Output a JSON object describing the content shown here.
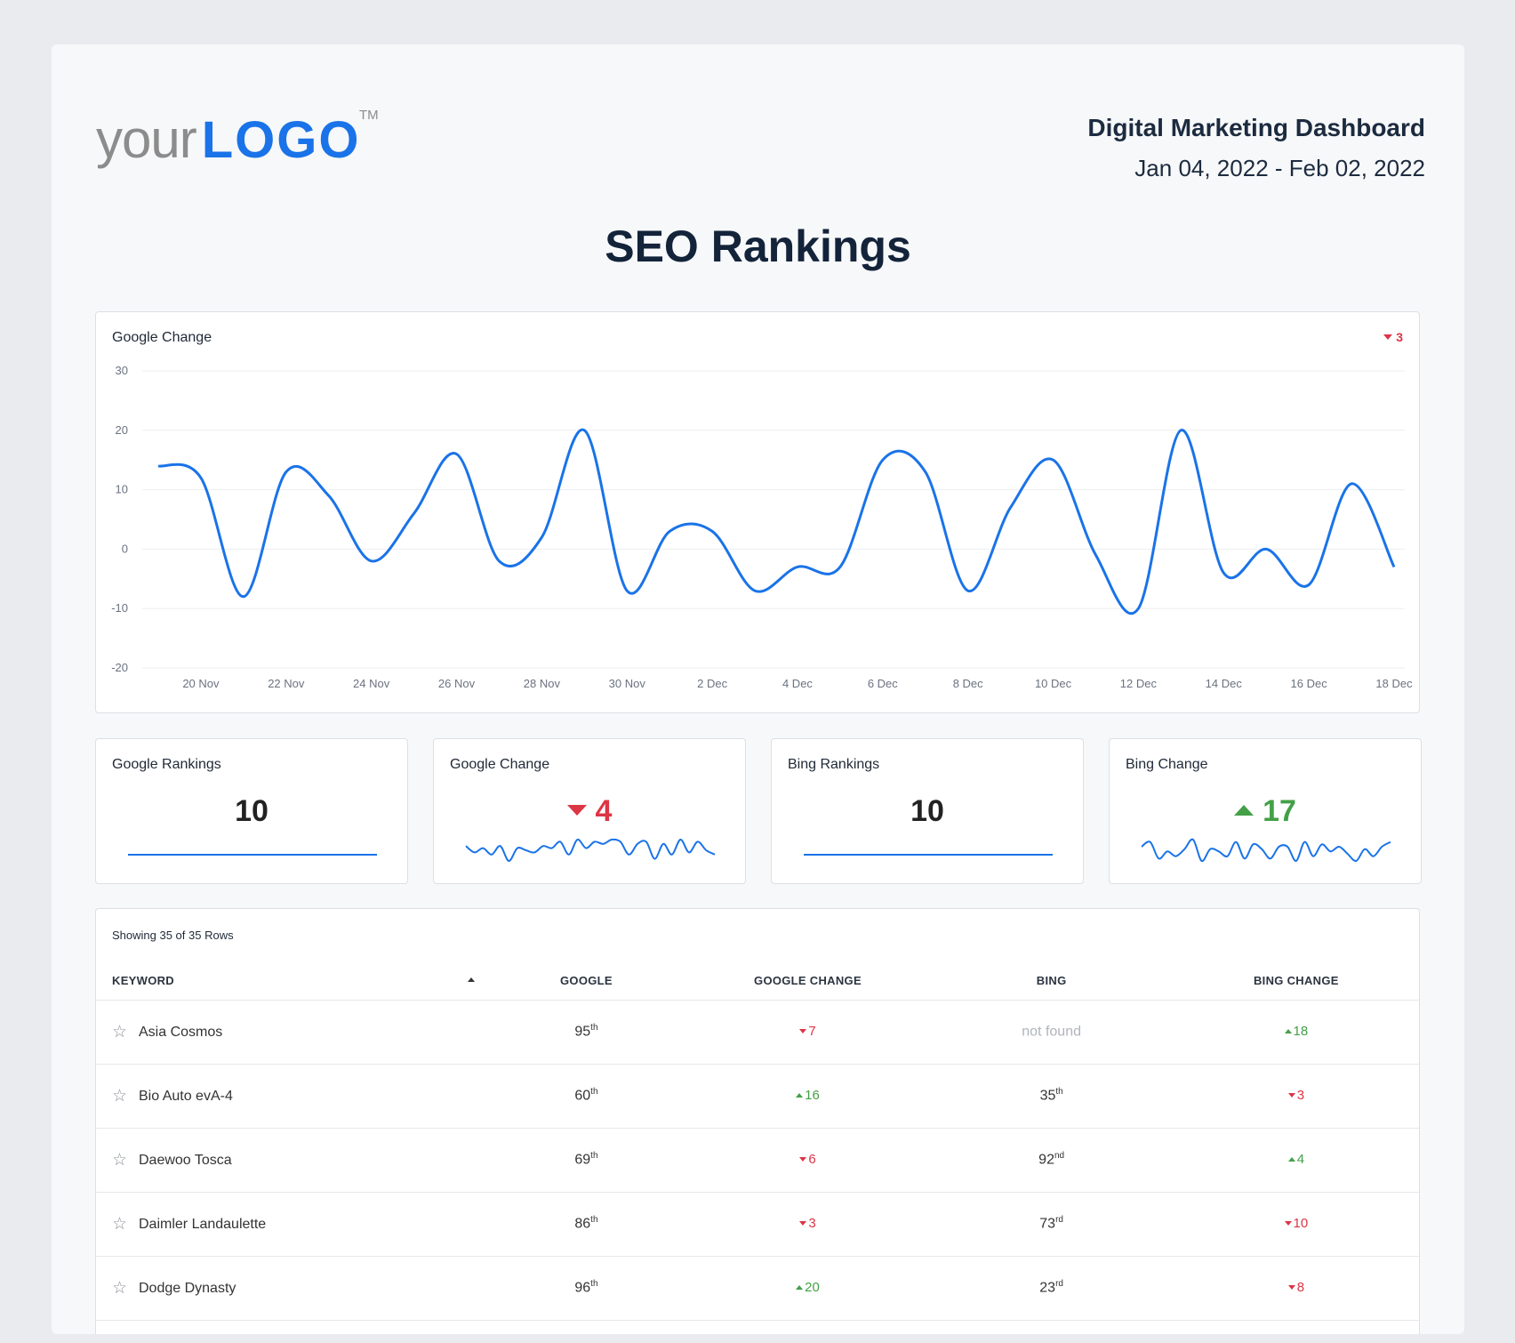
{
  "header": {
    "logo_your": "your",
    "logo_brand": "LOGO",
    "logo_tm": "TM",
    "report_title": "Digital Marketing Dashboard",
    "date_range": "Jan 04, 2022 - Feb 02, 2022"
  },
  "page_title": "SEO Rankings",
  "main_chart": {
    "title": "Google Change",
    "delta_value": "3",
    "delta_direction": "down"
  },
  "chart_data": {
    "type": "line",
    "title": "Google Change",
    "x": [
      "19 Nov",
      "20 Nov",
      "21 Nov",
      "22 Nov",
      "23 Nov",
      "24 Nov",
      "25 Nov",
      "26 Nov",
      "27 Nov",
      "28 Nov",
      "29 Nov",
      "30 Nov",
      "1 Dec",
      "2 Dec",
      "3 Dec",
      "4 Dec",
      "5 Dec",
      "6 Dec",
      "7 Dec",
      "8 Dec",
      "9 Dec",
      "10 Dec",
      "11 Dec",
      "12 Dec",
      "13 Dec",
      "14 Dec",
      "15 Dec",
      "16 Dec",
      "17 Dec",
      "18 Dec"
    ],
    "tick_labels": [
      "20 Nov",
      "22 Nov",
      "24 Nov",
      "26 Nov",
      "28 Nov",
      "30 Nov",
      "2 Dec",
      "4 Dec",
      "6 Dec",
      "8 Dec",
      "10 Dec",
      "12 Dec",
      "14 Dec",
      "16 Dec",
      "18 Dec"
    ],
    "series": [
      {
        "values": [
          14,
          12,
          -8,
          13,
          9,
          -2,
          6,
          16,
          -2,
          2,
          20,
          -7,
          3,
          3,
          -7,
          -3,
          -3,
          15,
          13,
          -7,
          7,
          15,
          -1,
          -10,
          20,
          -4,
          0,
          -6,
          11,
          -3
        ]
      }
    ],
    "y_ticks": [
      30,
      20,
      10,
      0,
      -10,
      -20
    ],
    "ylim": [
      -20,
      30
    ],
    "grid": true,
    "line_color": "#1a73e8"
  },
  "kpis": [
    {
      "title": "Google Rankings",
      "value": "10",
      "direction": "none",
      "spark": [
        10,
        10,
        10,
        10,
        10,
        10,
        10,
        10,
        10,
        10,
        10,
        10,
        10,
        10,
        10,
        10,
        10,
        10,
        10,
        10,
        10,
        10,
        10,
        10,
        10,
        10,
        10,
        10,
        10,
        10
      ]
    },
    {
      "title": "Google Change",
      "value": "4",
      "direction": "down",
      "spark": [
        5,
        2,
        4,
        1,
        5,
        -2,
        4,
        3,
        2,
        5,
        4,
        7,
        1,
        8,
        4,
        7,
        6,
        8,
        7,
        1,
        6,
        7,
        -1,
        6,
        1,
        8,
        2,
        7,
        3,
        1
      ]
    },
    {
      "title": "Bing Rankings",
      "value": "10",
      "direction": "none",
      "spark": [
        10,
        10,
        10,
        10,
        10,
        10,
        10,
        10,
        10,
        10,
        10,
        10,
        10,
        10,
        10,
        10,
        10,
        10,
        10,
        10,
        10,
        10,
        10,
        10,
        10,
        10,
        10,
        10,
        10,
        10
      ]
    },
    {
      "title": "Bing Change",
      "value": "17",
      "direction": "up",
      "spark": [
        6,
        8,
        1,
        4,
        2,
        5,
        9,
        0,
        5,
        4,
        2,
        8,
        1,
        7,
        5,
        1,
        6,
        6,
        0,
        8,
        2,
        7,
        4,
        6,
        3,
        0,
        5,
        2,
        6,
        8
      ]
    }
  ],
  "table": {
    "rows_label": "Showing 35 of 35 Rows",
    "headers": [
      "KEYWORD",
      "GOOGLE",
      "GOOGLE CHANGE",
      "BING",
      "BING CHANGE"
    ],
    "rows": [
      {
        "keyword": "Asia Cosmos",
        "google": "95",
        "google_suffix": "th",
        "google_change": "7",
        "google_change_dir": "down",
        "bing": "not found",
        "bing_suffix": "",
        "bing_change": "18",
        "bing_change_dir": "up"
      },
      {
        "keyword": "Bio Auto evA-4",
        "google": "60",
        "google_suffix": "th",
        "google_change": "16",
        "google_change_dir": "up",
        "bing": "35",
        "bing_suffix": "th",
        "bing_change": "3",
        "bing_change_dir": "down"
      },
      {
        "keyword": "Daewoo Tosca",
        "google": "69",
        "google_suffix": "th",
        "google_change": "6",
        "google_change_dir": "down",
        "bing": "92",
        "bing_suffix": "nd",
        "bing_change": "4",
        "bing_change_dir": "up"
      },
      {
        "keyword": "Daimler Landaulette",
        "google": "86",
        "google_suffix": "th",
        "google_change": "3",
        "google_change_dir": "down",
        "bing": "73",
        "bing_suffix": "rd",
        "bing_change": "10",
        "bing_change_dir": "down"
      },
      {
        "keyword": "Dodge Dynasty",
        "google": "96",
        "google_suffix": "th",
        "google_change": "20",
        "google_change_dir": "up",
        "bing": "23",
        "bing_suffix": "rd",
        "bing_change": "8",
        "bing_change_dir": "down"
      },
      {
        "keyword": "",
        "google": "",
        "google_suffix": "",
        "google_change": "",
        "google_change_dir": "",
        "bing": "",
        "bing_suffix": "",
        "bing_change": "",
        "bing_change_dir": ""
      }
    ]
  },
  "colors": {
    "accent": "#1a73e8",
    "down": "#dc3545",
    "up": "#43a047",
    "heading": "#13233a"
  }
}
